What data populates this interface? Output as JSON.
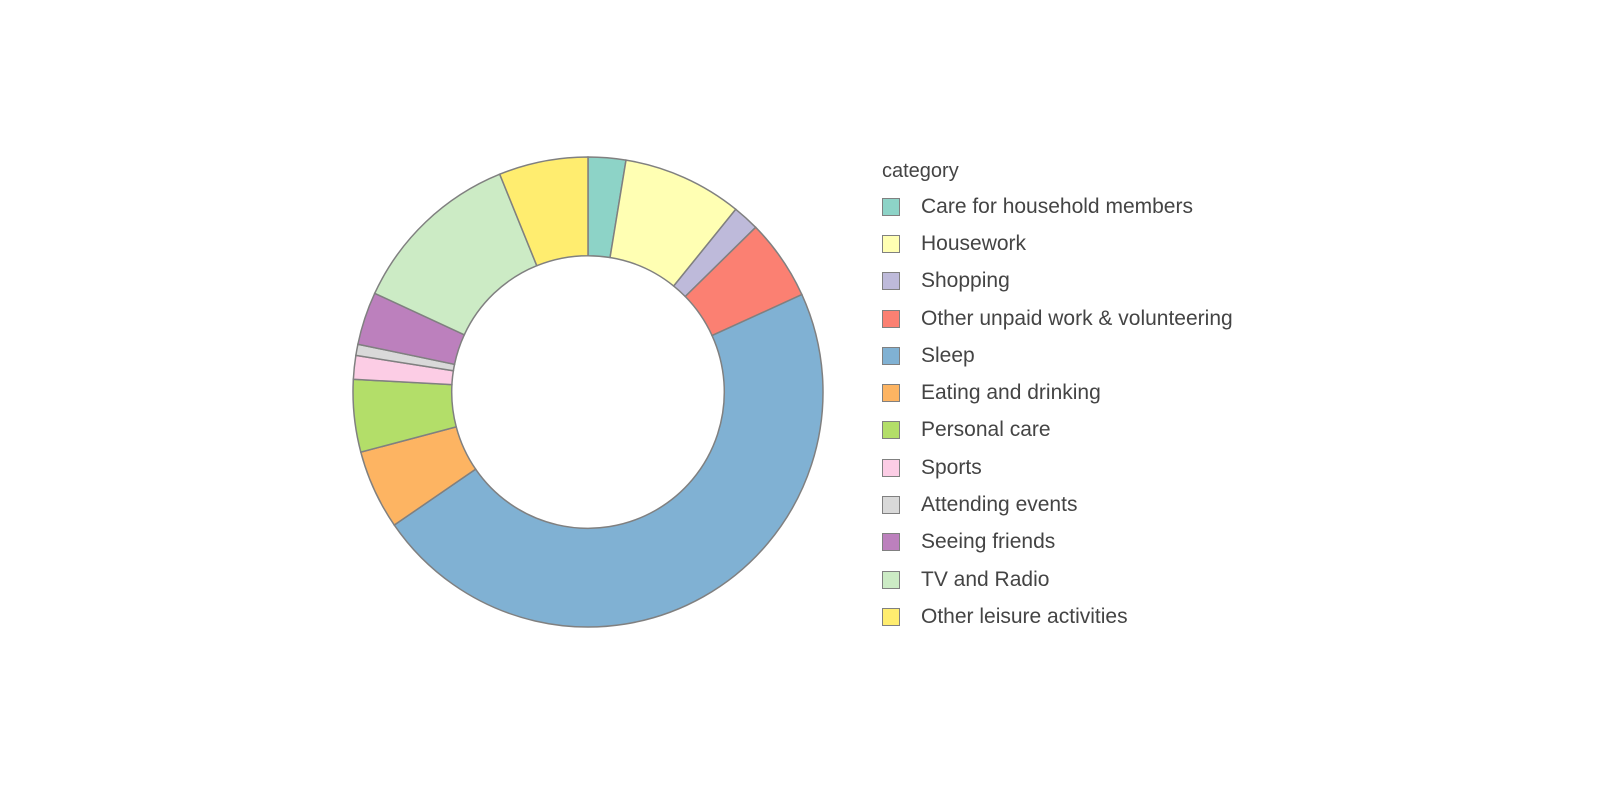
{
  "chart_data": {
    "type": "pie",
    "hole": 0.58,
    "legend_title": "category",
    "legend_position": "right",
    "slice_border_color": "#808080",
    "categories": [
      "Care for household members",
      "Housework",
      "Shopping",
      "Other unpaid work & volunteering",
      "Sleep",
      "Eating and drinking",
      "Personal care",
      "Sports",
      "Attending events",
      "Seeing friends",
      "TV and Radio",
      "Other leisure activities"
    ],
    "values": [
      2.7,
      8.6,
      1.9,
      5.8,
      49.3,
      5.7,
      5.2,
      1.7,
      0.8,
      3.8,
      12.5,
      6.4
    ],
    "colors": [
      "#8dd3c7",
      "#ffffb3",
      "#bebada",
      "#fb8072",
      "#80b1d3",
      "#fdb462",
      "#b3de69",
      "#fccde5",
      "#d9d9d9",
      "#bc80bd",
      "#ccebc5",
      "#ffed6f"
    ]
  }
}
